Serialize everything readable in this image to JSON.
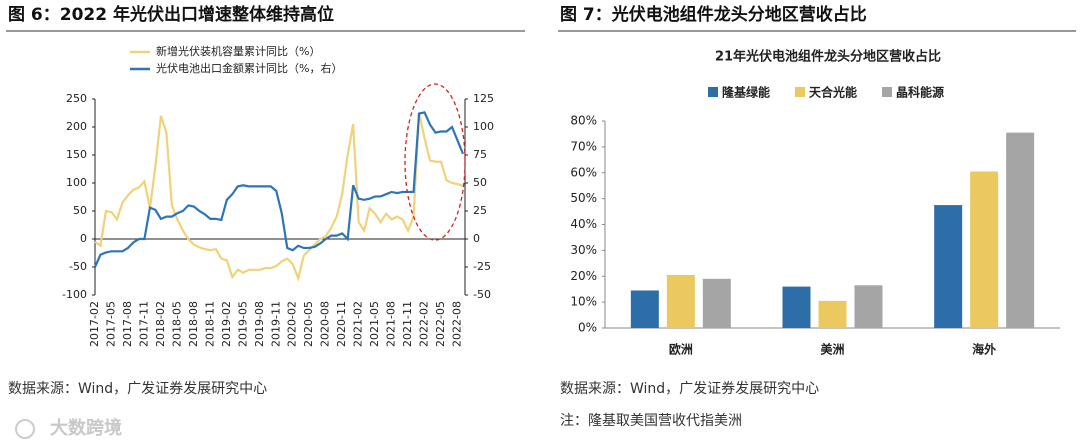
{
  "watermark": "大数跨境",
  "chart_data": [
    {
      "type": "line",
      "figure_title": "图 6：2022 年光伏出口增速整体维持高位",
      "source": "数据来源：Wind，广发证券发展研究中心",
      "categories": [
        "2017-02",
        null,
        null,
        "2017-05",
        null,
        null,
        "2017-08",
        null,
        null,
        "2017-11",
        null,
        null,
        "2018-02",
        null,
        null,
        "2018-05",
        null,
        null,
        "2018-08",
        null,
        null,
        "2018-11",
        null,
        null,
        "2019-02",
        null,
        null,
        "2019-05",
        null,
        null,
        "2019-08",
        null,
        null,
        "2019-11",
        null,
        null,
        "2020-02",
        null,
        null,
        "2020-05",
        null,
        null,
        "2020-08",
        null,
        null,
        "2020-11",
        null,
        null,
        "2021-02",
        null,
        null,
        "2021-05",
        null,
        null,
        "2021-08",
        null,
        null,
        "2021-11",
        null,
        null,
        "2022-02",
        null,
        null,
        "2022-05",
        null,
        null,
        "2022-08",
        null
      ],
      "series": [
        {
          "name": "新增光伏装机容量累计同比（%）",
          "color": "#f0d27a",
          "values": [
            -5,
            -12,
            50,
            48,
            35,
            65,
            78,
            88,
            92,
            103,
            55,
            130,
            220,
            190,
            60,
            35,
            15,
            0,
            -10,
            -15,
            -18,
            -20,
            -18,
            -35,
            -38,
            -68,
            -55,
            -60,
            -55,
            -55,
            -55,
            -52,
            -52,
            -48,
            -40,
            -35,
            -45,
            -70,
            -30,
            -20,
            -10,
            0,
            5,
            20,
            40,
            80,
            150,
            205,
            30,
            15,
            55,
            45,
            30,
            45,
            35,
            40,
            35,
            15,
            40,
            225,
            180,
            140,
            138,
            138,
            105,
            100,
            98,
            95
          ]
        },
        {
          "name": "光伏电池出口金额累计同比（%，右）",
          "color": "#2e75b6",
          "axis": "y2",
          "values": [
            -25,
            -14,
            -12,
            -11,
            -11,
            -11,
            -8,
            -3,
            0,
            0,
            28,
            26,
            18,
            20,
            20,
            23,
            25,
            30,
            29,
            25,
            22,
            18,
            18,
            17,
            35,
            40,
            47,
            48,
            47,
            47,
            47,
            47,
            47,
            43,
            23,
            -8,
            -10,
            -6,
            -8,
            -8,
            -7,
            -4,
            0,
            3,
            3,
            5,
            0,
            48,
            36,
            35,
            36,
            38,
            38,
            40,
            42,
            41,
            42,
            42,
            42,
            112,
            113,
            102,
            95,
            96,
            96,
            100,
            88,
            76
          ]
        }
      ],
      "ylim": [
        -100,
        250
      ],
      "yticks": [
        -100,
        -50,
        0,
        50,
        100,
        150,
        200,
        250
      ],
      "y2lim": [
        -50,
        125
      ],
      "y2ticks": [
        -50,
        -25,
        0,
        25,
        50,
        75,
        100,
        125
      ],
      "grid": false,
      "legend": "top"
    },
    {
      "type": "bar",
      "figure_title": "图 7：光伏电池组件龙头分地区营收占比",
      "title": "21年光伏电池组件龙头分地区营收占比",
      "source": "数据来源：Wind，广发证券发展研究中心",
      "note": "注：隆基取美国营收代指美洲",
      "categories": [
        "欧洲",
        "美洲",
        "海外"
      ],
      "series": [
        {
          "name": "隆基绿能",
          "color": "#2e6ea8",
          "values": [
            14.5,
            16,
            47.5
          ]
        },
        {
          "name": "天合光能",
          "color": "#ebc95e",
          "values": [
            20.5,
            10.5,
            60.5
          ]
        },
        {
          "name": "晶科能源",
          "color": "#a5a5a5",
          "values": [
            19,
            16.5,
            75.5
          ]
        }
      ],
      "ylim": [
        0,
        80
      ],
      "yticks": [
        {
          "value": 0,
          "label": "0%"
        },
        {
          "value": 10,
          "label": "10%"
        },
        {
          "value": 20,
          "label": "20%"
        },
        {
          "value": 30,
          "label": "30%"
        },
        {
          "value": 40,
          "label": "40%"
        },
        {
          "value": 50,
          "label": "50%"
        },
        {
          "value": 60,
          "label": "60%"
        },
        {
          "value": 70,
          "label": "70%"
        },
        {
          "value": 80,
          "label": "80%"
        }
      ],
      "grid": false,
      "legend": "top"
    }
  ]
}
